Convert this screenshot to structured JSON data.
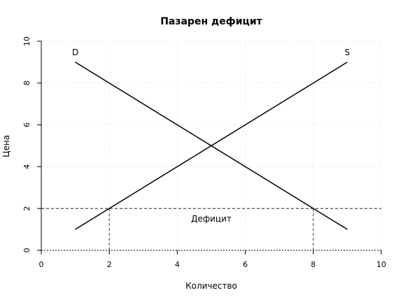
{
  "chart_data": {
    "type": "line",
    "title": "Пазарен дефицит",
    "xlabel": "Количество",
    "ylabel": "Цена",
    "xlim": [
      0,
      10
    ],
    "ylim": [
      0,
      10
    ],
    "xticks": [
      "0",
      "2",
      "4",
      "6",
      "8",
      "10"
    ],
    "yticks": [
      "0",
      "2",
      "4",
      "6",
      "8",
      "10"
    ],
    "grid": true,
    "series": [
      {
        "name": "D",
        "x": [
          1,
          9
        ],
        "y": [
          9,
          1
        ],
        "color": "#000000"
      },
      {
        "name": "S",
        "x": [
          1,
          9
        ],
        "y": [
          1,
          9
        ],
        "color": "#000000"
      }
    ],
    "price_line": {
      "y": 2
    },
    "deficit_bounds": {
      "supplied_qty": 2,
      "demanded_qty": 8
    },
    "annotation": {
      "text": "Дефицит",
      "x": 5,
      "y": 1.5
    }
  }
}
